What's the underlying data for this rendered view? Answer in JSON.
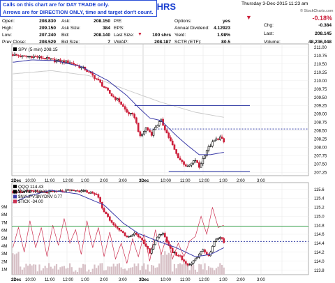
{
  "notice": {
    "line1": "Calls on this chart are for DAY TRADE only.",
    "line2": "Arrows are for DIRECTION ONLY, time and target don't count."
  },
  "header": {
    "symbol": "LSHRS",
    "date": "Thursday  3-Dec-2015  11:23 am",
    "brand": "© StockCharts.com",
    "quote": [
      {
        "label": "Open:",
        "value": "208.830"
      },
      {
        "label": "High:",
        "value": "209.150"
      },
      {
        "label": "Low:",
        "value": "207.240"
      },
      {
        "label": "Prev Close:",
        "value": "208.529"
      },
      {
        "label": "Ask:",
        "value": "208.150"
      },
      {
        "label": "Ask Size:",
        "value": "384"
      },
      {
        "label": "Bid:",
        "value": "208.140"
      },
      {
        "label": "Bid Size:",
        "value": "7"
      },
      {
        "label": "P/E:",
        "value": ""
      },
      {
        "label": "EPS:",
        "value": ""
      },
      {
        "label": "Last Size:",
        "value": "100 shrs"
      },
      {
        "label": "VWAP:",
        "value": "208.187"
      },
      {
        "label": "Options:",
        "value": "yes"
      },
      {
        "label": "Annual Dividend:",
        "value": "4.12923"
      },
      {
        "label": "Yield:",
        "value": "1.98%"
      },
      {
        "label": "SCTR (ETF):",
        "value": "80.5"
      },
      {
        "label": "Chg:",
        "value": "-0.384"
      },
      {
        "label": "Last:",
        "value": "208.145"
      },
      {
        "label": "Volume:",
        "value": "48,236,048"
      }
    ],
    "pct_change": "-0.18%"
  },
  "colors": {
    "up": "#000000",
    "down": "#cc1f3a",
    "ma": "#3b3ba8",
    "ma_light": "#c8c8c8",
    "level_line": "#1f2a9c",
    "volume": "#d7c0c6",
    "tick": "#cc3050",
    "green_line": "#33a047",
    "notice_text": "#1a3fd0"
  },
  "chart_data": [
    {
      "type": "candlestick",
      "title": "SPY (5 min) 208.15",
      "x_ticks": [
        "2Dec",
        "10:00",
        "11:00",
        "12:00",
        "1:00",
        "2:00",
        "3:00",
        "3Dec",
        "10:00",
        "11:00",
        "12:00",
        "1:00",
        "2:00",
        "3:00"
      ],
      "y_ticks": [
        "211.00",
        "210.75",
        "210.50",
        "210.25",
        "210.00",
        "209.75",
        "209.50",
        "209.25",
        "209.00",
        "208.75",
        "208.50",
        "208.25",
        "208.00",
        "207.75",
        "207.50",
        "207.25"
      ],
      "ylim": [
        207.15,
        211.1
      ],
      "close_anchors": [
        [
          0,
          210.78
        ],
        [
          5,
          210.72
        ],
        [
          10,
          210.73
        ],
        [
          16,
          210.68
        ],
        [
          22,
          210.6
        ],
        [
          30,
          210.55
        ],
        [
          38,
          210.34
        ],
        [
          44,
          210.05
        ],
        [
          48,
          209.8
        ],
        [
          52,
          209.55
        ],
        [
          56,
          209.38
        ],
        [
          60,
          209.05
        ],
        [
          64,
          208.92
        ],
        [
          67,
          208.3
        ],
        [
          70,
          208.58
        ],
        [
          73,
          208.4
        ],
        [
          75,
          208.62
        ],
        [
          78,
          208.8
        ],
        [
          82,
          208.3
        ],
        [
          86,
          207.8
        ],
        [
          88,
          207.62
        ],
        [
          92,
          207.4
        ],
        [
          96,
          207.62
        ],
        [
          98,
          207.4
        ],
        [
          102,
          207.92
        ],
        [
          106,
          208.2
        ],
        [
          109,
          208.3
        ],
        [
          111,
          208.15
        ]
      ],
      "ma_anchors": [
        [
          0,
          210.55
        ],
        [
          10,
          210.62
        ],
        [
          22,
          210.6
        ],
        [
          36,
          210.42
        ],
        [
          50,
          210.0
        ],
        [
          60,
          209.55
        ],
        [
          66,
          209.2
        ],
        [
          72,
          208.88
        ],
        [
          78,
          208.8
        ],
        [
          86,
          208.35
        ],
        [
          92,
          208.05
        ],
        [
          98,
          207.78
        ],
        [
          104,
          207.78
        ],
        [
          111,
          207.85
        ]
      ],
      "ma_light_anchors": [
        [
          0,
          210.2
        ],
        [
          20,
          210.3
        ],
        [
          40,
          210.15
        ],
        [
          60,
          209.72
        ],
        [
          78,
          209.35
        ],
        [
          96,
          209.05
        ],
        [
          111,
          208.9
        ]
      ],
      "levels": [
        {
          "value": 209.25,
          "style": "solid",
          "from_bar": 64
        },
        {
          "value": 208.55,
          "style": "dashed",
          "from_bar": 72
        },
        {
          "value": 207.27,
          "style": "solid",
          "from_bar": 82
        }
      ]
    },
    {
      "type": "candlestick",
      "title": "QQQ 114.43",
      "series": [
        {
          "name": "$NYAD -719.00"
        },
        {
          "name": "$NYUPV:$NYDNV 0.77"
        },
        {
          "name": "$TICK -34.00"
        }
      ],
      "x_ticks": [
        "2Dec",
        "10:00",
        "11:00",
        "12:00",
        "1:00",
        "2:00",
        "3:00",
        "3Dec",
        "10:00",
        "11:00",
        "12:00",
        "1:00",
        "2:00",
        "3:00"
      ],
      "y_ticks_right": [
        "115.6",
        "115.4",
        "115.2",
        "115.0",
        "114.8",
        "114.6",
        "114.4",
        "114.2",
        "114.0",
        "113.8"
      ],
      "y_ticks_left": [
        "9M",
        "8M",
        "7M",
        "6M",
        "5M",
        "4M",
        "3M",
        "2M",
        "1M"
      ],
      "ylim": [
        113.7,
        115.75
      ],
      "close_anchors": [
        [
          0,
          115.55
        ],
        [
          10,
          115.55
        ],
        [
          20,
          115.54
        ],
        [
          30,
          115.57
        ],
        [
          38,
          115.55
        ],
        [
          44,
          115.5
        ],
        [
          48,
          115.1
        ],
        [
          52,
          114.85
        ],
        [
          56,
          114.7
        ],
        [
          60,
          114.55
        ],
        [
          64,
          114.62
        ],
        [
          68,
          114.45
        ],
        [
          72,
          114.2
        ],
        [
          76,
          114.55
        ],
        [
          79,
          114.6
        ],
        [
          84,
          114.2
        ],
        [
          88,
          114.1
        ],
        [
          92,
          113.9
        ],
        [
          96,
          114.05
        ],
        [
          100,
          114.25
        ],
        [
          103,
          114.1
        ],
        [
          106,
          114.45
        ],
        [
          109,
          114.55
        ],
        [
          111,
          114.43
        ]
      ],
      "ma_anchors": [
        [
          0,
          115.3
        ],
        [
          8,
          115.45
        ],
        [
          20,
          115.58
        ],
        [
          34,
          115.5
        ],
        [
          48,
          115.25
        ],
        [
          58,
          114.85
        ],
        [
          66,
          114.62
        ],
        [
          76,
          114.45
        ],
        [
          86,
          114.3
        ],
        [
          96,
          114.1
        ],
        [
          104,
          114.15
        ],
        [
          111,
          114.3
        ]
      ],
      "tick_anchors": [
        [
          0,
          114.3
        ],
        [
          3,
          114.75
        ],
        [
          6,
          114.2
        ],
        [
          9,
          114.9
        ],
        [
          12,
          114.3
        ],
        [
          15,
          114.75
        ],
        [
          18,
          114.1
        ],
        [
          21,
          114.8
        ],
        [
          24,
          114.35
        ],
        [
          27,
          114.95
        ],
        [
          30,
          114.4
        ],
        [
          33,
          114.7
        ],
        [
          36,
          114.15
        ],
        [
          39,
          114.9
        ],
        [
          42,
          114.3
        ],
        [
          45,
          114.75
        ],
        [
          48,
          114.1
        ],
        [
          51,
          114.65
        ],
        [
          54,
          114.05
        ],
        [
          57,
          114.4
        ],
        [
          60,
          113.95
        ],
        [
          63,
          114.5
        ],
        [
          66,
          114.1
        ],
        [
          69,
          114.6
        ],
        [
          72,
          114.0
        ],
        [
          75,
          114.7
        ],
        [
          78,
          114.15
        ],
        [
          81,
          114.55
        ],
        [
          84,
          114.05
        ],
        [
          87,
          114.4
        ],
        [
          90,
          114.1
        ],
        [
          93,
          114.45
        ],
        [
          96,
          114.55
        ],
        [
          99,
          115.0
        ],
        [
          102,
          114.6
        ],
        [
          105,
          115.2
        ],
        [
          108,
          114.75
        ],
        [
          111,
          114.8
        ]
      ],
      "levels": [
        {
          "value": 114.78,
          "style": "solid",
          "color": "green"
        },
        {
          "value": 114.44,
          "style": "dashed"
        }
      ]
    }
  ]
}
